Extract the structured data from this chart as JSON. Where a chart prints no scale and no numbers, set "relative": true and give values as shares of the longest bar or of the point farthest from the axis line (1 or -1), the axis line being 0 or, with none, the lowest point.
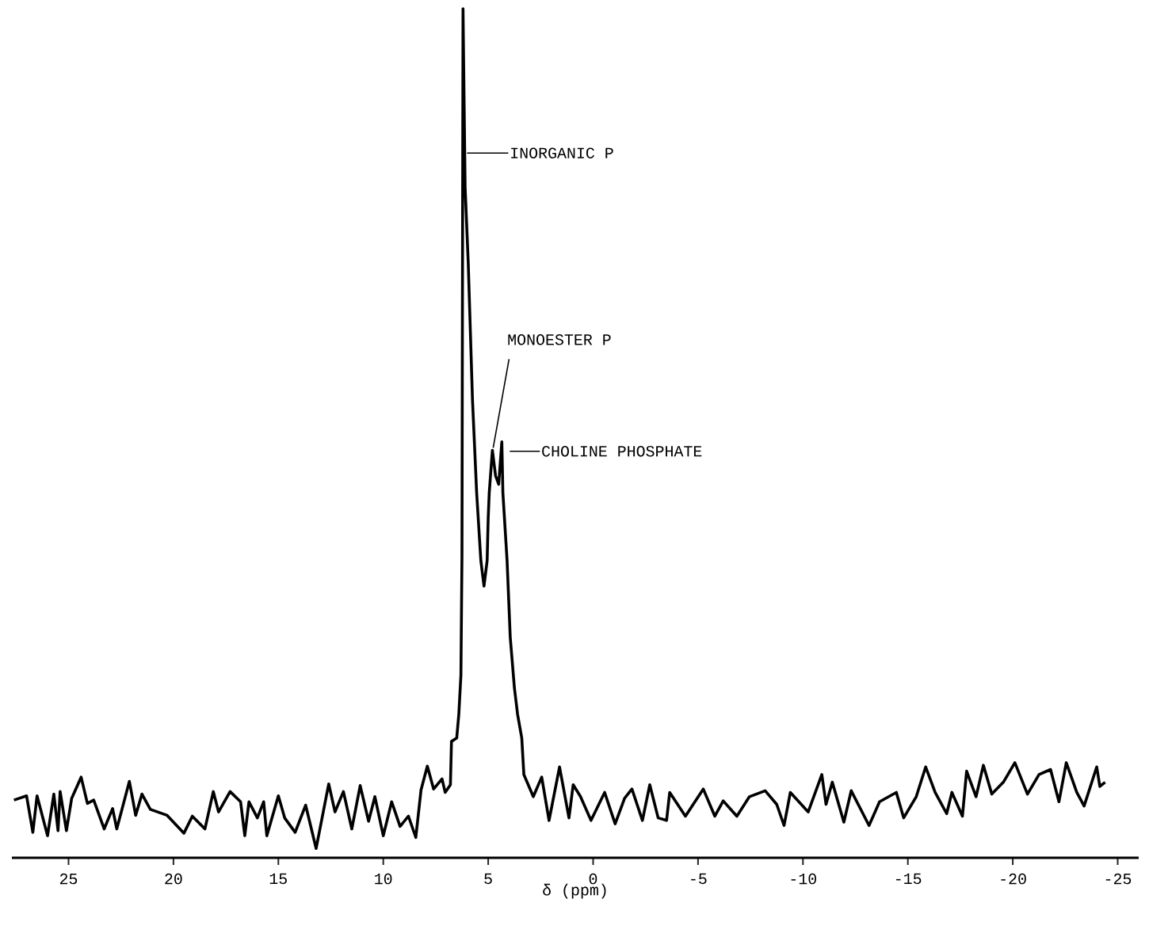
{
  "chart_data": {
    "type": "line",
    "relative": true,
    "xlabel": "δ (ppm)",
    "color": "#000000",
    "xlim": [
      27.7,
      -26
    ],
    "xticks": [
      25,
      20,
      15,
      10,
      5,
      0,
      -5,
      -10,
      -15,
      -20,
      -25
    ],
    "x": [
      27.6,
      27.0,
      26.7,
      26.5,
      26.0,
      25.7,
      25.5,
      25.4,
      25.1,
      24.85,
      24.4,
      24.1,
      23.8,
      23.3,
      22.9,
      22.7,
      22.1,
      21.8,
      21.5,
      21.1,
      20.3,
      19.5,
      19.1,
      18.5,
      18.1,
      17.85,
      17.3,
      16.8,
      16.6,
      16.4,
      16.0,
      15.7,
      15.55,
      15.0,
      14.7,
      14.2,
      13.7,
      13.2,
      12.6,
      12.3,
      11.9,
      11.5,
      11.1,
      10.7,
      10.4,
      10.0,
      9.6,
      9.2,
      8.8,
      8.45,
      8.2,
      7.9,
      7.6,
      7.2,
      7.05,
      6.8,
      6.75,
      6.5,
      6.4,
      6.3,
      6.25,
      6.2,
      6.1,
      5.95,
      5.75,
      5.55,
      5.35,
      5.2,
      5.05,
      5.0,
      4.95,
      4.8,
      4.65,
      4.5,
      4.35,
      4.3,
      4.1,
      3.95,
      3.75,
      3.6,
      3.4,
      3.3,
      2.85,
      2.45,
      2.1,
      1.6,
      1.15,
      0.95,
      0.6,
      0.1,
      -0.55,
      -1.05,
      -1.5,
      -1.85,
      -2.35,
      -2.7,
      -3.1,
      -3.5,
      -3.65,
      -4.4,
      -5.25,
      -5.8,
      -6.2,
      -6.85,
      -7.45,
      -8.2,
      -8.75,
      -9.1,
      -9.4,
      -10.25,
      -10.9,
      -11.1,
      -11.4,
      -11.95,
      -12.3,
      -13.15,
      -13.65,
      -14.45,
      -14.8,
      -15.4,
      -15.85,
      -16.3,
      -16.85,
      -17.1,
      -17.6,
      -17.8,
      -18.25,
      -18.6,
      -19.0,
      -19.55,
      -20.1,
      -20.7,
      -21.25,
      -21.8,
      -22.2,
      -22.55,
      -23.05,
      -23.4,
      -24.0,
      -24.15,
      -24.4
    ],
    "values": [
      0.068,
      0.073,
      0.03,
      0.073,
      0.026,
      0.075,
      0.032,
      0.078,
      0.032,
      0.07,
      0.095,
      0.064,
      0.068,
      0.034,
      0.058,
      0.034,
      0.09,
      0.05,
      0.075,
      0.057,
      0.05,
      0.029,
      0.049,
      0.034,
      0.078,
      0.054,
      0.078,
      0.066,
      0.026,
      0.066,
      0.047,
      0.066,
      0.026,
      0.073,
      0.047,
      0.03,
      0.062,
      0.011,
      0.087,
      0.054,
      0.078,
      0.034,
      0.085,
      0.043,
      0.072,
      0.026,
      0.066,
      0.037,
      0.049,
      0.024,
      0.08,
      0.108,
      0.081,
      0.093,
      0.077,
      0.086,
      0.137,
      0.141,
      0.169,
      0.215,
      0.354,
      1.0,
      0.79,
      0.7,
      0.54,
      0.43,
      0.35,
      0.32,
      0.35,
      0.4,
      0.43,
      0.48,
      0.45,
      0.44,
      0.49,
      0.43,
      0.35,
      0.26,
      0.2,
      0.169,
      0.141,
      0.098,
      0.072,
      0.095,
      0.044,
      0.107,
      0.047,
      0.086,
      0.072,
      0.044,
      0.077,
      0.04,
      0.07,
      0.081,
      0.044,
      0.086,
      0.047,
      0.044,
      0.077,
      0.049,
      0.081,
      0.049,
      0.067,
      0.049,
      0.072,
      0.079,
      0.063,
      0.038,
      0.077,
      0.054,
      0.098,
      0.063,
      0.089,
      0.042,
      0.079,
      0.038,
      0.066,
      0.077,
      0.047,
      0.072,
      0.107,
      0.077,
      0.052,
      0.077,
      0.049,
      0.102,
      0.072,
      0.109,
      0.075,
      0.089,
      0.112,
      0.075,
      0.098,
      0.104,
      0.066,
      0.112,
      0.077,
      0.061,
      0.107,
      0.084,
      0.089
    ],
    "annotations": [
      {
        "text": "INORGANIC P",
        "x": 6.12,
        "y": 0.83
      },
      {
        "text": "MONOESTER P",
        "x": 4.8,
        "y": 0.48
      },
      {
        "text": "CHOLINE PHOSPHATE",
        "x": 4.35,
        "y": 0.49
      }
    ]
  }
}
